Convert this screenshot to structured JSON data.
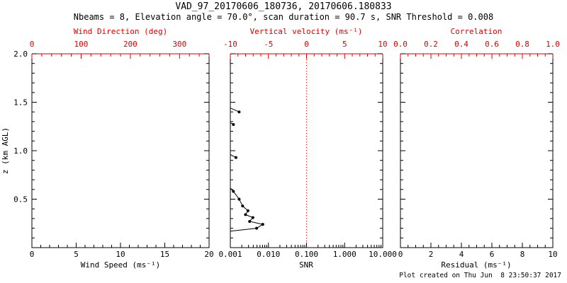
{
  "header": {
    "title": "VAD_97_20170606_180736, 20170606.180833",
    "subtitle": "Nbeams = 8, Elevation angle = 70.0°, scan duration = 90.7 s, SNR Threshold = 0.008"
  },
  "footer": {
    "created": "Plot created on Thu Jun  8 23:50:37 2017"
  },
  "colors": {
    "background": "#ffffff",
    "axis": "#000000",
    "secondary_axis": "#e00000",
    "data": "#000000"
  },
  "chart_data": [
    {
      "id": "wind",
      "type": "line",
      "xlabel": "Wind Speed (ms⁻¹)",
      "xlim": [
        0,
        20
      ],
      "xticks": {
        "values": [
          0,
          5,
          10,
          15,
          20
        ],
        "labels": [
          "0",
          "5",
          "10",
          "15",
          "20"
        ]
      },
      "x2label": "Wind Direction (deg)",
      "x2lim": [
        0,
        360
      ],
      "x2ticks": {
        "values": [
          0,
          100,
          200,
          300
        ],
        "labels": [
          "0",
          "100",
          "200",
          "300"
        ]
      },
      "ylabel": "z (km AGL)",
      "ylim": [
        0,
        2
      ],
      "yticks": {
        "values": [
          0,
          0.5,
          1.0,
          1.5,
          2.0
        ],
        "labels": [
          "",
          "0.5",
          "1.0",
          "1.5",
          "2.0"
        ]
      },
      "grid": false,
      "series": []
    },
    {
      "id": "snr",
      "type": "line",
      "xlabel": "SNR",
      "xscale": "log",
      "xlim": [
        0.001,
        10
      ],
      "xticks": {
        "values": [
          0.001,
          0.01,
          0.1,
          1,
          10
        ],
        "labels": [
          "0.001",
          "0.010",
          "0.100",
          "1.000",
          "10.000"
        ]
      },
      "x2label": "Vertical velocity (ms⁻¹)",
      "x2lim": [
        -10,
        10
      ],
      "x2ticks": {
        "values": [
          -10,
          -5,
          0,
          5,
          10
        ],
        "labels": [
          "-10",
          "-5",
          "0",
          "5",
          "10"
        ]
      },
      "ylim": [
        0,
        2
      ],
      "yticks": {
        "values": [
          0,
          0.5,
          1.0,
          1.5,
          2.0
        ],
        "labels": [
          "",
          "",
          "",
          "",
          ""
        ]
      },
      "grid": false,
      "refline": {
        "axis": "x2",
        "value": 0,
        "style": "dotted",
        "color": "#e00000"
      },
      "series": [
        {
          "name": "snr-profile",
          "point_format": "[snr, z_km]",
          "points": [
            [
              0.0017,
              1.4
            ],
            [
              0.0012,
              1.27
            ],
            [
              0.0014,
              0.93
            ],
            [
              0.0012,
              0.58
            ],
            [
              0.0017,
              0.5
            ],
            [
              0.0021,
              0.43
            ],
            [
              0.0029,
              0.38
            ],
            [
              0.0025,
              0.34
            ],
            [
              0.0039,
              0.31
            ],
            [
              0.0032,
              0.27
            ],
            [
              0.0071,
              0.24
            ],
            [
              0.0049,
              0.2
            ]
          ],
          "segments": [
            [
              [
                0.001,
                1.44
              ],
              [
                0.0017,
                1.4
              ]
            ],
            [
              [
                0.001,
                1.29
              ],
              [
                0.0012,
                1.27
              ]
            ],
            [
              [
                0.001,
                0.96
              ],
              [
                0.0014,
                0.93
              ]
            ],
            [
              [
                0.001,
                0.615
              ],
              [
                0.0012,
                0.58
              ],
              [
                0.0017,
                0.5
              ],
              [
                0.0021,
                0.43
              ],
              [
                0.0029,
                0.38
              ],
              [
                0.0025,
                0.34
              ],
              [
                0.0039,
                0.31
              ],
              [
                0.0032,
                0.27
              ],
              [
                0.0071,
                0.24
              ],
              [
                0.0049,
                0.2
              ],
              [
                0.001,
                0.17
              ]
            ]
          ]
        }
      ]
    },
    {
      "id": "residual",
      "type": "line",
      "xlabel": "Residual (ms⁻¹)",
      "xlim": [
        0,
        10
      ],
      "xticks": {
        "values": [
          0,
          2,
          4,
          6,
          8,
          10
        ],
        "labels": [
          "0",
          "2",
          "4",
          "6",
          "8",
          "10"
        ]
      },
      "x2label": "Correlation",
      "x2lim": [
        0,
        1
      ],
      "x2ticks": {
        "values": [
          0,
          0.2,
          0.4,
          0.6,
          0.8,
          1.0
        ],
        "labels": [
          "0.0",
          "0.2",
          "0.4",
          "0.6",
          "0.8",
          "1.0"
        ]
      },
      "ylim": [
        0,
        2
      ],
      "yticks": {
        "values": [
          0,
          0.5,
          1.0,
          1.5,
          2.0
        ],
        "labels": [
          "",
          "",
          "",
          "",
          ""
        ]
      },
      "grid": false,
      "series": []
    }
  ]
}
